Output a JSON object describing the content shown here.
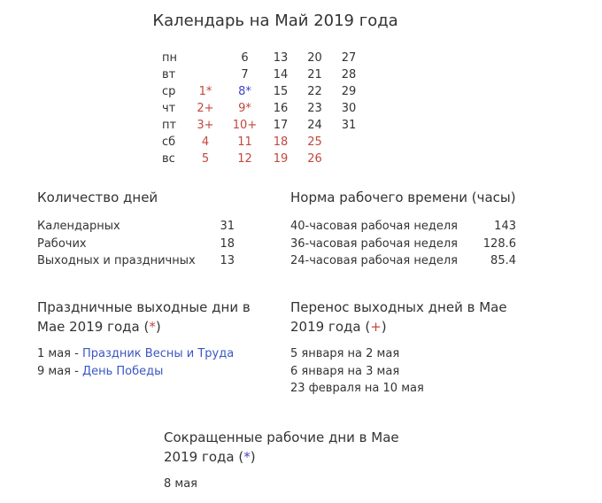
{
  "title": "Календарь на Май 2019 года",
  "colors": {
    "text": "#333333",
    "holiday_red": "#c2473d",
    "shortened_blue": "#4343c4",
    "link_blue": "#3a57c2"
  },
  "calendar": {
    "month": "Май 2019",
    "rows": [
      {
        "label": "пн",
        "cells": [
          {
            "t": ""
          },
          {
            "t": "6"
          },
          {
            "t": "13"
          },
          {
            "t": "20"
          },
          {
            "t": "27"
          }
        ]
      },
      {
        "label": "вт",
        "cells": [
          {
            "t": ""
          },
          {
            "t": "7"
          },
          {
            "t": "14"
          },
          {
            "t": "21"
          },
          {
            "t": "28"
          }
        ]
      },
      {
        "label": "ср",
        "cells": [
          {
            "t": "1*",
            "c": "red"
          },
          {
            "t": "8*",
            "c": "blue"
          },
          {
            "t": "15"
          },
          {
            "t": "22"
          },
          {
            "t": "29"
          }
        ]
      },
      {
        "label": "чт",
        "cells": [
          {
            "t": "2+",
            "c": "red"
          },
          {
            "t": "9*",
            "c": "red"
          },
          {
            "t": "16"
          },
          {
            "t": "23"
          },
          {
            "t": "30"
          }
        ]
      },
      {
        "label": "пт",
        "cells": [
          {
            "t": "3+",
            "c": "red"
          },
          {
            "t": "10+",
            "c": "red"
          },
          {
            "t": "17"
          },
          {
            "t": "24"
          },
          {
            "t": "31"
          }
        ]
      },
      {
        "label": "сб",
        "cells": [
          {
            "t": "4",
            "c": "red"
          },
          {
            "t": "11",
            "c": "red"
          },
          {
            "t": "18",
            "c": "red"
          },
          {
            "t": "25",
            "c": "red"
          },
          {
            "t": ""
          }
        ]
      },
      {
        "label": "вс",
        "cells": [
          {
            "t": "5",
            "c": "red"
          },
          {
            "t": "12",
            "c": "red"
          },
          {
            "t": "19",
            "c": "red"
          },
          {
            "t": "26",
            "c": "red"
          },
          {
            "t": ""
          }
        ]
      }
    ]
  },
  "counts": {
    "heading": "Количество дней",
    "rows": [
      {
        "label": "Календарных",
        "value": "31"
      },
      {
        "label": "Рабочих",
        "value": "18"
      },
      {
        "label": "Выходных и праздничных",
        "value": "13"
      }
    ]
  },
  "hours": {
    "heading": "Норма рабочего времени (часы)",
    "rows": [
      {
        "label": "40-часовая рабочая неделя",
        "value": "143"
      },
      {
        "label": "36-часовая рабочая неделя",
        "value": "128.6"
      },
      {
        "label": "24-часовая рабочая неделя",
        "value": "85.4"
      }
    ]
  },
  "holidays": {
    "heading_line1": "Праздничные выходные дни в",
    "heading_line2_pre": "Мае 2019 года (",
    "heading_mark": "*",
    "heading_line2_post": ")",
    "items": [
      {
        "prefix": "1 мая - ",
        "link": "Праздник Весны и Труда"
      },
      {
        "prefix": "9 мая - ",
        "link": "День Победы"
      }
    ]
  },
  "transfers": {
    "heading_line1": "Перенос выходных дней в Мае",
    "heading_line2_pre": "2019 года (",
    "heading_mark": "+",
    "heading_line2_post": ")",
    "items": [
      "5 января на 2 мая",
      "6 января на 3 мая",
      "23 февраля на 10 мая"
    ]
  },
  "shortened": {
    "heading_line1": "Сокращенные рабочие дни в Мае",
    "heading_line2_pre": "2019 года (",
    "heading_mark": "*",
    "heading_line2_post": ")",
    "items": [
      "8 мая"
    ]
  }
}
